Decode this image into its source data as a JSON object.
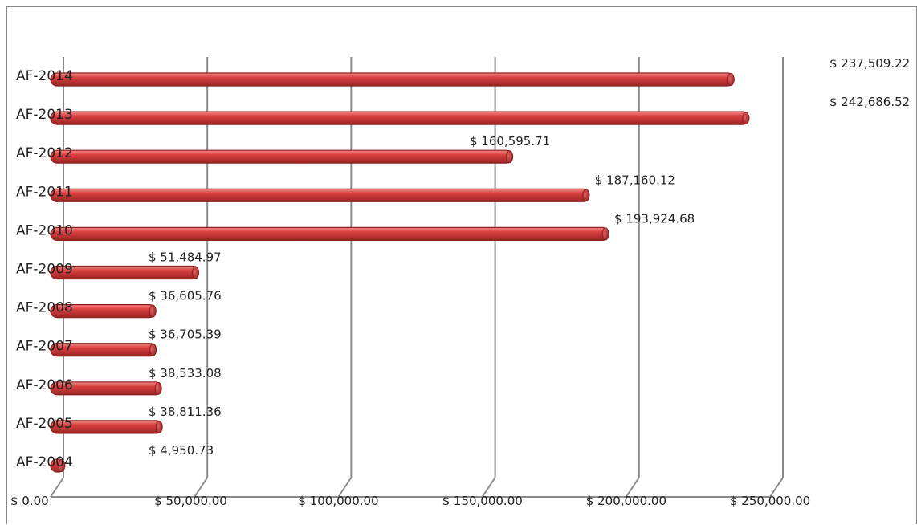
{
  "chart_data": {
    "type": "bar",
    "orientation": "horizontal",
    "categories": [
      "AF-2004",
      "AF-2005",
      "AF-2006",
      "AF-2007",
      "AF-2008",
      "AF-2009",
      "AF-2010",
      "AF-2011",
      "AF-2012",
      "AF-2013",
      "AF-2014"
    ],
    "values": [
      4950.73,
      38811.36,
      38533.08,
      36705.39,
      36605.76,
      51484.97,
      193924.68,
      187160.12,
      160595.71,
      242686.52,
      237509.22
    ],
    "data_labels": [
      "$ 4,950.73",
      "$ 38,811.36",
      "$ 38,533.08",
      "$ 36,705.39",
      "$ 36,605.76",
      "$ 51,484.97",
      "$ 193,924.68",
      "$ 187,160.12",
      "$ 160,595.71",
      "$ 242,686.52",
      "$ 237,509.22"
    ],
    "xlim": [
      0,
      250000
    ],
    "x_ticks": [
      0,
      50000,
      100000,
      150000,
      200000,
      250000
    ],
    "x_tick_labels": [
      "$ 0.00",
      "$ 50,000.00",
      "$ 100,000.00",
      "$ 150,000.00",
      "$ 200,000.00",
      "$ 250,000.00"
    ],
    "grid": true,
    "legend": "none",
    "bar_color": "#d9403f",
    "bar_edge_color": "#8e1f1f",
    "title": "",
    "xlabel": "",
    "ylabel": ""
  }
}
